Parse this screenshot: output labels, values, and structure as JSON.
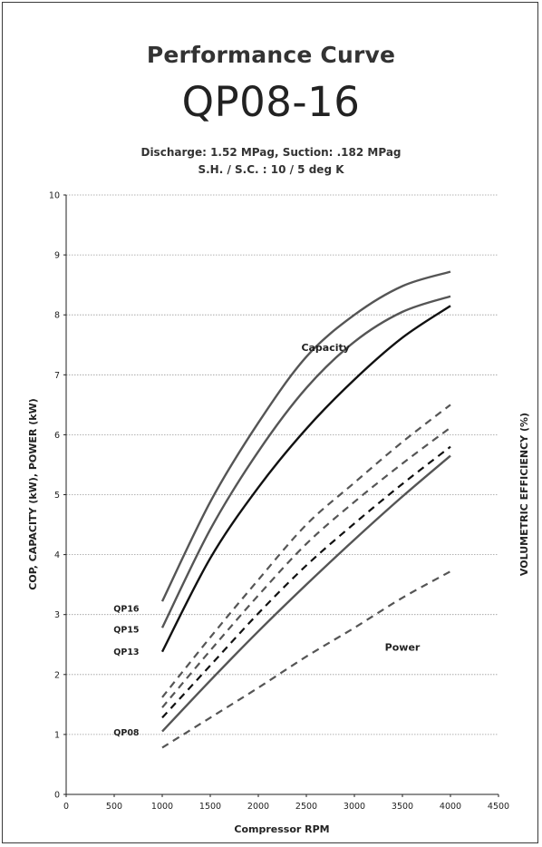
{
  "header": {
    "title": "Performance Curve",
    "model": "QP08-16",
    "condition_line1": "Discharge: 1.52 MPag, Suction: .182 MPag",
    "condition_line2": "S.H. / S.C. : 10 / 5 deg K"
  },
  "chart_data": {
    "type": "line",
    "xlabel": "Compressor RPM",
    "ylabel": "COP, CAPACITY (kW), POWER (kW)",
    "y2label": "VOLUMETRIC EFFICIENCY (%)",
    "xlim": [
      0,
      4500
    ],
    "ylim": [
      0,
      10
    ],
    "xticks": [
      0,
      500,
      1000,
      1500,
      2000,
      2500,
      3000,
      3500,
      4000,
      4500
    ],
    "yticks": [
      0,
      1,
      2,
      3,
      4,
      5,
      6,
      7,
      8,
      9,
      10
    ],
    "grid": "horizontal",
    "annotations": [
      {
        "text": "Capacity",
        "x": 2700,
        "y": 7.4
      },
      {
        "text": "Power",
        "x": 3500,
        "y": 2.4
      },
      {
        "text": "QP16",
        "x": 760,
        "y": 3.05
      },
      {
        "text": "QP15",
        "x": 760,
        "y": 2.7
      },
      {
        "text": "QP13",
        "x": 760,
        "y": 2.33
      },
      {
        "text": "QP08",
        "x": 760,
        "y": 0.98
      }
    ],
    "series": [
      {
        "group": "capacity",
        "style": "solid",
        "color": "#555555",
        "x": [
          1000,
          1500,
          2000,
          2500,
          3000,
          3500,
          4000
        ],
        "values": [
          3.22,
          4.88,
          6.2,
          7.3,
          8.0,
          8.48,
          8.72
        ]
      },
      {
        "group": "capacity",
        "style": "solid",
        "color": "#555555",
        "x": [
          1000,
          1500,
          2000,
          2500,
          3000,
          3500,
          4000
        ],
        "values": [
          2.78,
          4.42,
          5.72,
          6.78,
          7.55,
          8.05,
          8.31
        ]
      },
      {
        "group": "capacity",
        "style": "solid",
        "color": "#111111",
        "x": [
          1000,
          1500,
          2000,
          2500,
          3000,
          3500,
          4000
        ],
        "values": [
          2.38,
          3.94,
          5.12,
          6.1,
          6.92,
          7.62,
          8.15
        ]
      },
      {
        "group": "capacity",
        "style": "solid",
        "color": "#555555",
        "x": [
          1000,
          1500,
          2000,
          2500,
          3000,
          3500,
          4000
        ],
        "values": [
          1.05,
          1.9,
          2.72,
          3.5,
          4.25,
          4.97,
          5.65
        ]
      },
      {
        "group": "power",
        "style": "dashed",
        "color": "#555555",
        "x": [
          1000,
          1500,
          2000,
          2500,
          3000,
          3500,
          4000
        ],
        "values": [
          1.62,
          2.62,
          3.58,
          4.5,
          5.2,
          5.88,
          6.5
        ]
      },
      {
        "group": "power",
        "style": "dashed",
        "color": "#555555",
        "x": [
          1000,
          1500,
          2000,
          2500,
          3000,
          3500,
          4000
        ],
        "values": [
          1.45,
          2.4,
          3.32,
          4.18,
          4.88,
          5.52,
          6.12
        ]
      },
      {
        "group": "power",
        "style": "dashed",
        "color": "#111111",
        "x": [
          1000,
          1500,
          2000,
          2500,
          3000,
          3500,
          4000
        ],
        "values": [
          1.28,
          2.15,
          3.02,
          3.82,
          4.52,
          5.18,
          5.8
        ]
      },
      {
        "group": "power",
        "style": "dashed",
        "color": "#555555",
        "x": [
          1000,
          1500,
          2000,
          2500,
          3000,
          3500,
          4000
        ],
        "values": [
          0.78,
          1.28,
          1.78,
          2.3,
          2.78,
          3.28,
          3.72
        ]
      }
    ]
  }
}
